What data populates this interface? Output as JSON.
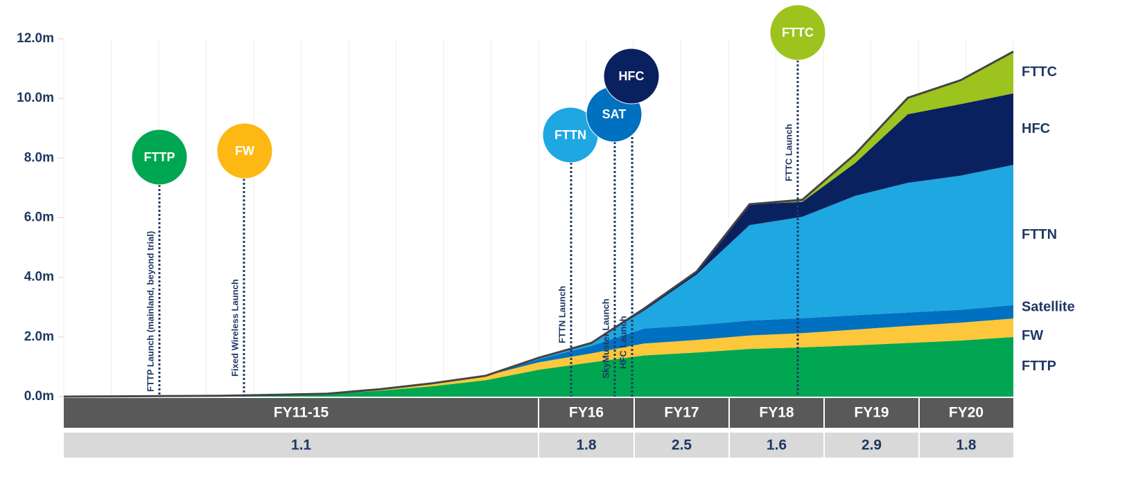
{
  "chart_data": {
    "type": "stacked-area",
    "categories": [
      null,
      null,
      null,
      null,
      null,
      null,
      null,
      null,
      null,
      null,
      null,
      null,
      null,
      null,
      null,
      null,
      null,
      null,
      null
    ],
    "ylim": [
      0,
      12
    ],
    "yticks": [
      {
        "value": 0,
        "label": "0.0m"
      },
      {
        "value": 2,
        "label": "2.0m"
      },
      {
        "value": 4,
        "label": "4.0m"
      },
      {
        "value": 6,
        "label": "6.0m"
      },
      {
        "value": 8,
        "label": "8.0m"
      },
      {
        "value": 10,
        "label": "10.0m"
      },
      {
        "value": 12,
        "label": "12.0m"
      }
    ],
    "series": [
      {
        "name": "FTTP",
        "color": "#00a651",
        "values": [
          0,
          0.01,
          0.02,
          0.03,
          0.05,
          0.08,
          0.2,
          0.35,
          0.55,
          0.9,
          1.15,
          1.38,
          1.48,
          1.6,
          1.65,
          1.72,
          1.8,
          1.88,
          2.0
        ]
      },
      {
        "name": "FW",
        "color": "#fcc73a",
        "values": [
          0,
          0,
          0,
          0,
          0.01,
          0.02,
          0.05,
          0.1,
          0.15,
          0.25,
          0.3,
          0.4,
          0.42,
          0.45,
          0.48,
          0.53,
          0.57,
          0.6,
          0.62
        ]
      },
      {
        "name": "Satellite",
        "color": "#0070c0",
        "values": [
          0,
          0,
          0,
          0,
          0,
          0,
          0,
          0,
          0,
          0.1,
          0.25,
          0.5,
          0.5,
          0.5,
          0.5,
          0.48,
          0.45,
          0.43,
          0.45
        ]
      },
      {
        "name": "FTTN",
        "color": "#1ea7e1",
        "values": [
          0,
          0,
          0,
          0,
          0,
          0,
          0,
          0,
          0,
          0.05,
          0.1,
          0.6,
          1.7,
          3.2,
          3.4,
          4.0,
          4.35,
          4.5,
          4.7
        ]
      },
      {
        "name": "HFC",
        "color": "#0a2160",
        "values": [
          0,
          0,
          0,
          0,
          0,
          0,
          0,
          0,
          0,
          0,
          0,
          0.07,
          0.1,
          0.7,
          0.5,
          1.1,
          2.3,
          2.4,
          2.4
        ]
      },
      {
        "name": "FTTC",
        "color": "#9dc31e",
        "values": [
          0,
          0,
          0,
          0,
          0,
          0,
          0,
          0,
          0,
          0,
          0,
          0,
          0,
          0,
          0.07,
          0.3,
          0.55,
          0.8,
          1.4
        ]
      }
    ],
    "periods": [
      {
        "name": "FY11-15",
        "value": 1.1
      },
      {
        "name": "FY16",
        "value": 1.8
      },
      {
        "name": "FY17",
        "value": 2.5
      },
      {
        "name": "FY18",
        "value": 1.6
      },
      {
        "name": "FY19",
        "value": 2.9
      },
      {
        "name": "FY20",
        "value": 1.8
      }
    ],
    "annotations": [
      {
        "label": "FTTP",
        "text": "FTTP Launch (mainland, beyond trial)",
        "color": "#00a651"
      },
      {
        "label": "FW",
        "text": "Fixed Wireless Launch",
        "color": "#fdb813"
      },
      {
        "label": "FTTN",
        "text": "FTTN Launch",
        "color": "#1ea7e1"
      },
      {
        "label": "SAT",
        "text": "SkyMuster Launch",
        "color": "#0070c0"
      },
      {
        "label": "HFC",
        "text": "HFC Launch",
        "color": "#0a2160"
      },
      {
        "label": "FTTC",
        "text": "FTTC Launch",
        "color": "#9dc31e"
      }
    ]
  }
}
